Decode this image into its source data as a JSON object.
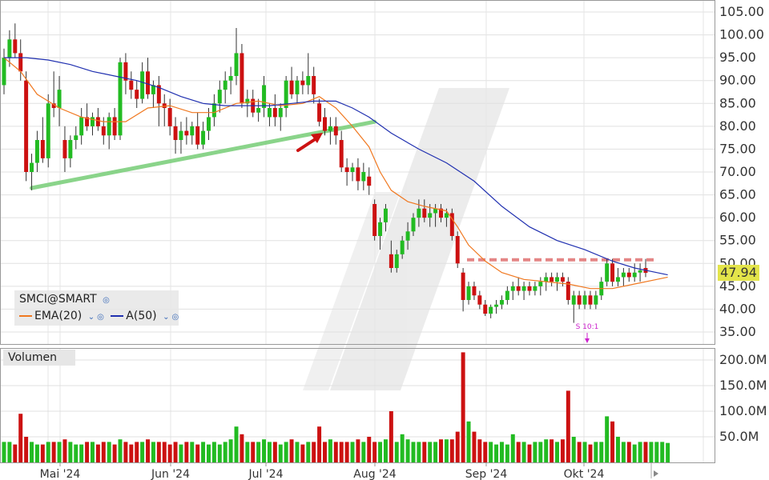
{
  "chart_data": [
    {
      "type": "candlestick",
      "symbol_label": "SMCI@SMART",
      "indicators": [
        {
          "name": "EMA(20)",
          "color": "#f07820"
        },
        {
          "name": "A(50)",
          "color": "#2030b0"
        }
      ],
      "last_price_label": "47.94",
      "ylim": [
        31,
        107
      ],
      "y_ticks": [
        "105.00",
        "100.00",
        "95.00",
        "90.00",
        "85.00",
        "80.00",
        "75.00",
        "70.00",
        "65.00",
        "60.00",
        "55.00",
        "50.00",
        "45.00",
        "40.00",
        "35.00"
      ],
      "x_ticks": [
        "Mai '24",
        "Jun '24",
        "Jul '24",
        "Aug '24",
        "Sep '24",
        "Okt '24"
      ],
      "split_annotation": "S 10:1",
      "resistance_level": 50.8,
      "trendline": {
        "start": 66.5,
        "end": 81.0
      },
      "candles": [
        [
          89.0,
          97.0,
          87.0,
          95.0
        ],
        [
          95.0,
          101.0,
          93.0,
          99.0
        ],
        [
          99.0,
          102.5,
          95.0,
          96.0
        ],
        [
          96.0,
          99.0,
          90.0,
          92.0
        ],
        [
          90.0,
          92.0,
          68.0,
          70.0
        ],
        [
          70.0,
          74.0,
          66.0,
          72.0
        ],
        [
          72.0,
          79.0,
          70.0,
          77.0
        ],
        [
          77.0,
          82.0,
          72.0,
          73.0
        ],
        [
          73.0,
          87.0,
          71.0,
          85.0
        ],
        [
          85.0,
          92.0,
          82.0,
          84.0
        ],
        [
          84.0,
          91.0,
          80.0,
          88.0
        ],
        [
          77.0,
          80.0,
          70.0,
          73.0
        ],
        [
          73.0,
          78.0,
          71.0,
          77.0
        ],
        [
          77.0,
          80.0,
          75.0,
          78.0
        ],
        [
          78.0,
          84.0,
          76.0,
          82.0
        ],
        [
          82.0,
          85.0,
          79.0,
          80.0
        ],
        [
          80.0,
          83.0,
          78.0,
          82.0
        ],
        [
          82.0,
          84.0,
          79.0,
          80.0
        ],
        [
          80.0,
          82.0,
          76.0,
          78.0
        ],
        [
          78.0,
          83.0,
          75.0,
          82.0
        ],
        [
          82.0,
          84.0,
          77.0,
          78.0
        ],
        [
          78.0,
          95.0,
          77.0,
          94.0
        ],
        [
          94.0,
          96.0,
          87.0,
          90.0
        ],
        [
          90.0,
          92.0,
          86.0,
          88.0
        ],
        [
          88.0,
          90.0,
          84.0,
          86.0
        ],
        [
          86.0,
          94.0,
          85.0,
          92.0
        ],
        [
          92.0,
          95.0,
          86.0,
          87.0
        ],
        [
          87.0,
          90.0,
          84.0,
          89.0
        ],
        [
          89.0,
          91.0,
          80.0,
          85.0
        ],
        [
          85.0,
          87.0,
          80.0,
          84.0
        ],
        [
          84.0,
          86.0,
          78.0,
          80.0
        ],
        [
          80.0,
          82.0,
          74.0,
          77.0
        ],
        [
          77.0,
          81.0,
          74.0,
          79.0
        ],
        [
          79.0,
          82.0,
          76.0,
          78.0
        ],
        [
          78.0,
          81.0,
          76.0,
          80.0
        ],
        [
          80.0,
          83.0,
          75.0,
          76.0
        ],
        [
          76.0,
          81.0,
          75.0,
          79.0
        ],
        [
          79.0,
          84.0,
          77.0,
          82.0
        ],
        [
          82.0,
          87.0,
          80.0,
          85.0
        ],
        [
          85.0,
          90.0,
          83.0,
          88.0
        ],
        [
          88.0,
          92.0,
          85.0,
          90.0
        ],
        [
          90.0,
          93.0,
          87.0,
          91.0
        ],
        [
          91.0,
          101.5,
          89.0,
          96.0
        ],
        [
          96.0,
          98.0,
          84.0,
          85.0
        ],
        [
          85.0,
          88.0,
          82.0,
          86.0
        ],
        [
          86.0,
          88.0,
          82.0,
          83.0
        ],
        [
          83.0,
          86.0,
          81.0,
          84.0
        ],
        [
          84.0,
          91.0,
          82.0,
          89.0
        ],
        [
          82.0,
          85.0,
          80.0,
          84.0
        ],
        [
          84.0,
          87.0,
          80.0,
          82.0
        ],
        [
          82.0,
          85.0,
          79.0,
          84.0
        ],
        [
          84.0,
          91.0,
          82.0,
          90.0
        ],
        [
          90.0,
          93.0,
          86.0,
          87.0
        ],
        [
          87.0,
          91.0,
          85.0,
          90.0
        ],
        [
          90.0,
          92.0,
          87.0,
          89.0
        ],
        [
          89.0,
          96.0,
          87.0,
          91.0
        ],
        [
          91.0,
          93.0,
          85.0,
          87.0
        ],
        [
          85.0,
          86.0,
          80.0,
          81.0
        ],
        [
          82.0,
          84.0,
          78.0,
          79.0
        ],
        [
          79.0,
          82.0,
          76.0,
          80.0
        ],
        [
          80.0,
          82.0,
          76.0,
          78.0
        ],
        [
          77.0,
          79.0,
          70.0,
          71.0
        ],
        [
          71.0,
          73.0,
          67.0,
          70.0
        ],
        [
          70.0,
          72.0,
          68.0,
          71.0
        ],
        [
          71.0,
          73.0,
          66.0,
          68.0
        ],
        [
          68.0,
          72.0,
          66.0,
          70.0
        ],
        [
          69.0,
          71.0,
          65.0,
          67.0
        ],
        [
          63.0,
          64.0,
          55.0,
          56.0
        ],
        [
          56.0,
          60.0,
          53.0,
          59.0
        ],
        [
          59.0,
          63.0,
          57.0,
          62.0
        ],
        [
          52.0,
          55.0,
          48.0,
          49.0
        ],
        [
          49.0,
          53.0,
          48.0,
          52.0
        ],
        [
          52.0,
          56.0,
          51.0,
          55.0
        ],
        [
          55.0,
          59.0,
          53.0,
          57.0
        ],
        [
          57.0,
          61.0,
          56.0,
          60.0
        ],
        [
          60.0,
          64.0,
          58.0,
          62.0
        ],
        [
          62.0,
          64.0,
          59.0,
          60.0
        ],
        [
          60.0,
          63.0,
          58.0,
          61.0
        ],
        [
          61.0,
          63.0,
          58.0,
          62.0
        ],
        [
          62.0,
          63.0,
          59.0,
          60.0
        ],
        [
          60.0,
          62.0,
          58.0,
          61.0
        ],
        [
          61.0,
          62.0,
          55.0,
          56.0
        ],
        [
          56.0,
          57.0,
          49.0,
          50.0
        ],
        [
          48.0,
          49.0,
          39.5,
          42.0
        ],
        [
          42.0,
          46.0,
          41.0,
          45.0
        ],
        [
          45.0,
          46.0,
          42.0,
          43.0
        ],
        [
          43.0,
          44.0,
          40.0,
          41.0
        ],
        [
          41.0,
          42.0,
          38.5,
          39.0
        ],
        [
          39.0,
          41.0,
          38.0,
          40.5
        ],
        [
          40.5,
          42.0,
          39.0,
          41.0
        ],
        [
          41.0,
          43.0,
          40.0,
          42.0
        ],
        [
          42.0,
          45.0,
          41.0,
          44.0
        ],
        [
          44.0,
          46.0,
          42.0,
          45.0
        ],
        [
          45.0,
          47.0,
          43.0,
          44.0
        ],
        [
          44.0,
          46.0,
          42.0,
          45.0
        ],
        [
          45.0,
          46.0,
          43.0,
          44.0
        ],
        [
          44.0,
          46.0,
          43.0,
          45.0
        ],
        [
          45.0,
          47.0,
          43.0,
          46.0
        ],
        [
          46.0,
          48.0,
          44.0,
          47.0
        ],
        [
          47.0,
          48.0,
          45.0,
          46.0
        ],
        [
          46.0,
          48.0,
          44.0,
          47.0
        ],
        [
          47.0,
          48.0,
          45.0,
          46.0
        ],
        [
          46.0,
          47.0,
          41.0,
          42.0
        ],
        [
          41.0,
          44.0,
          37.0,
          43.0
        ],
        [
          43.0,
          44.0,
          40.0,
          41.0
        ],
        [
          41.0,
          44.0,
          40.0,
          43.0
        ],
        [
          43.0,
          44.0,
          40.0,
          41.0
        ],
        [
          41.0,
          44.0,
          40.0,
          43.0
        ],
        [
          43.0,
          47.0,
          42.0,
          46.0
        ],
        [
          46.0,
          51.0,
          45.0,
          50.0
        ],
        [
          50.0,
          51.0,
          45.0,
          46.0
        ],
        [
          46.0,
          49.0,
          45.0,
          47.0
        ],
        [
          47.0,
          49.0,
          45.0,
          48.0
        ],
        [
          48.0,
          49.0,
          46.0,
          47.0
        ],
        [
          47.0,
          50.0,
          46.0,
          48.0
        ],
        [
          48.0,
          50.0,
          46.0,
          48.5
        ],
        [
          49.0,
          51.0,
          47.0,
          47.94
        ]
      ],
      "ema20": [
        [
          0,
          95.0
        ],
        [
          3,
          92.0
        ],
        [
          6,
          87.0
        ],
        [
          10,
          84.0
        ],
        [
          14,
          82.0
        ],
        [
          18,
          81.0
        ],
        [
          22,
          81.0
        ],
        [
          26,
          84.0
        ],
        [
          30,
          84.5
        ],
        [
          34,
          83.0
        ],
        [
          38,
          83.0
        ],
        [
          42,
          85.0
        ],
        [
          46,
          85.5
        ],
        [
          50,
          84.5
        ],
        [
          54,
          85.0
        ],
        [
          57,
          86.5
        ],
        [
          60,
          84.0
        ],
        [
          63,
          80.0
        ],
        [
          66,
          75.5
        ],
        [
          68,
          70.0
        ],
        [
          70,
          66.0
        ],
        [
          73,
          63.5
        ],
        [
          76,
          62.5
        ],
        [
          80,
          61.5
        ],
        [
          82,
          58.0
        ],
        [
          84,
          54.0
        ],
        [
          87,
          50.5
        ],
        [
          90,
          48.0
        ],
        [
          94,
          46.5
        ],
        [
          98,
          46.0
        ],
        [
          102,
          45.5
        ],
        [
          106,
          44.5
        ],
        [
          110,
          44.5
        ],
        [
          114,
          45.5
        ],
        [
          118,
          46.5
        ],
        [
          120,
          47.0
        ]
      ],
      "sma50": [
        [
          0,
          95.0
        ],
        [
          4,
          95.0
        ],
        [
          8,
          94.5
        ],
        [
          12,
          93.5
        ],
        [
          16,
          92.0
        ],
        [
          20,
          91.0
        ],
        [
          24,
          90.0
        ],
        [
          28,
          88.5
        ],
        [
          32,
          86.5
        ],
        [
          36,
          85.0
        ],
        [
          40,
          84.5
        ],
        [
          44,
          84.5
        ],
        [
          48,
          84.5
        ],
        [
          52,
          85.0
        ],
        [
          56,
          85.5
        ],
        [
          60,
          85.5
        ],
        [
          63,
          84.0
        ],
        [
          66,
          82.0
        ],
        [
          70,
          78.5
        ],
        [
          75,
          75.0
        ],
        [
          80,
          72.0
        ],
        [
          85,
          68.0
        ],
        [
          90,
          62.5
        ],
        [
          95,
          58.0
        ],
        [
          100,
          55.0
        ],
        [
          105,
          53.0
        ],
        [
          110,
          50.5
        ],
        [
          114,
          49.0
        ],
        [
          118,
          48.0
        ],
        [
          120,
          47.5
        ]
      ],
      "volume": {
        "label": "Volumen",
        "ticks": [
          "200.0M",
          "150.0M",
          "100.0M",
          "50.0M"
        ],
        "ylim": [
          0,
          222
        ],
        "values": [
          40,
          40,
          35,
          95,
          50,
          40,
          35,
          35,
          40,
          40,
          40,
          45,
          40,
          35,
          35,
          40,
          40,
          35,
          40,
          40,
          35,
          45,
          40,
          35,
          40,
          40,
          45,
          40,
          40,
          40,
          35,
          40,
          35,
          40,
          40,
          35,
          40,
          35,
          40,
          35,
          40,
          45,
          70,
          55,
          40,
          40,
          40,
          45,
          40,
          40,
          35,
          40,
          45,
          40,
          35,
          40,
          40,
          70,
          40,
          45,
          40,
          40,
          40,
          40,
          45,
          40,
          50,
          40,
          40,
          45,
          100,
          40,
          55,
          45,
          40,
          40,
          40,
          40,
          40,
          45,
          45,
          45,
          60,
          215,
          80,
          60,
          45,
          40,
          40,
          35,
          40,
          35,
          55,
          40,
          40,
          35,
          40,
          40,
          45,
          45,
          40,
          45,
          140,
          50,
          40,
          40,
          35,
          40,
          40,
          90,
          80,
          50,
          40,
          40,
          35,
          40,
          40,
          40,
          40,
          40,
          38
        ]
      }
    }
  ]
}
